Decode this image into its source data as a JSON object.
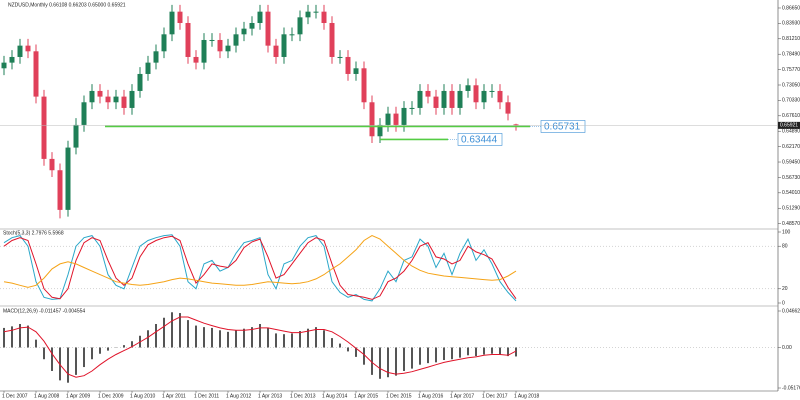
{
  "chart_data": [
    {
      "type": "candlestick",
      "title": "NZDUSD,Monthly  0.66108 0.66203 0.65000 0.65921",
      "categories": [
        "1 Dec 2007",
        null,
        null,
        null,
        "1 Aug 2008",
        null,
        null,
        null,
        "1 Apr 2009",
        null,
        null,
        null,
        "1 Dec 2009",
        null,
        null,
        null,
        "1 Aug 2010",
        null,
        null,
        null,
        "1 Apr 2011",
        null,
        null,
        null,
        "1 Dec 2011",
        null,
        null,
        null,
        "1 Aug 2012",
        null,
        null,
        null,
        "1 Apr 2013",
        null,
        null,
        null,
        "1 Dec 2013",
        null,
        null,
        null,
        "1 Aug 2014",
        null,
        null,
        null,
        "1 Apr 2015",
        null,
        null,
        null,
        "1 Dec 2015",
        null,
        null,
        null,
        "1 Aug 2016",
        null,
        null,
        null,
        "1 Apr 2017",
        null,
        null,
        null,
        "1 Dec 2017",
        null,
        null,
        null,
        "1 Aug 2018"
      ],
      "open": [
        0.76,
        0.77,
        0.78,
        0.8,
        0.79,
        0.71,
        0.6,
        0.58,
        0.51,
        0.62,
        0.66,
        0.7,
        0.72,
        0.71,
        0.7,
        0.71,
        0.69,
        0.72,
        0.75,
        0.77,
        0.79,
        0.82,
        0.86,
        0.84,
        0.78,
        0.77,
        0.81,
        0.81,
        0.79,
        0.8,
        0.82,
        0.83,
        0.84,
        0.86,
        0.8,
        0.78,
        0.82,
        0.82,
        0.85,
        0.86,
        0.86,
        0.84,
        0.78,
        0.78,
        0.75,
        0.76,
        0.7,
        0.64,
        0.66,
        0.68,
        0.66,
        0.69,
        0.69,
        0.72,
        0.71,
        0.69,
        0.72,
        0.69,
        0.72,
        0.73,
        0.7,
        0.72,
        0.72,
        0.7,
        0.661
      ],
      "high": [
        0.782,
        0.792,
        0.812,
        0.812,
        0.802,
        0.722,
        0.612,
        0.592,
        0.632,
        0.672,
        0.712,
        0.732,
        0.732,
        0.722,
        0.722,
        0.722,
        0.732,
        0.762,
        0.782,
        0.802,
        0.832,
        0.872,
        0.872,
        0.852,
        0.792,
        0.822,
        0.822,
        0.822,
        0.812,
        0.832,
        0.842,
        0.852,
        0.872,
        0.872,
        0.812,
        0.832,
        0.832,
        0.862,
        0.872,
        0.872,
        0.872,
        0.852,
        0.792,
        0.792,
        0.772,
        0.772,
        0.712,
        0.672,
        0.692,
        0.692,
        0.702,
        0.702,
        0.732,
        0.732,
        0.722,
        0.732,
        0.732,
        0.732,
        0.742,
        0.742,
        0.732,
        0.732,
        0.732,
        0.712,
        0.662
      ],
      "low": [
        0.748,
        0.758,
        0.768,
        0.778,
        0.698,
        0.588,
        0.568,
        0.495,
        0.498,
        0.608,
        0.648,
        0.688,
        0.698,
        0.688,
        0.688,
        0.678,
        0.678,
        0.708,
        0.738,
        0.758,
        0.778,
        0.808,
        0.828,
        0.768,
        0.758,
        0.758,
        0.798,
        0.778,
        0.778,
        0.788,
        0.808,
        0.818,
        0.828,
        0.788,
        0.768,
        0.768,
        0.808,
        0.808,
        0.838,
        0.848,
        0.828,
        0.768,
        0.768,
        0.738,
        0.738,
        0.688,
        0.628,
        0.628,
        0.648,
        0.648,
        0.648,
        0.678,
        0.678,
        0.698,
        0.678,
        0.678,
        0.678,
        0.678,
        0.708,
        0.688,
        0.688,
        0.708,
        0.688,
        0.668,
        0.65
      ],
      "close": [
        0.77,
        0.78,
        0.8,
        0.79,
        0.71,
        0.6,
        0.58,
        0.51,
        0.62,
        0.66,
        0.7,
        0.72,
        0.71,
        0.7,
        0.71,
        0.69,
        0.72,
        0.75,
        0.77,
        0.79,
        0.82,
        0.86,
        0.84,
        0.78,
        0.77,
        0.81,
        0.81,
        0.79,
        0.8,
        0.82,
        0.83,
        0.84,
        0.86,
        0.8,
        0.78,
        0.82,
        0.82,
        0.85,
        0.86,
        0.86,
        0.84,
        0.78,
        0.78,
        0.75,
        0.76,
        0.7,
        0.64,
        0.66,
        0.68,
        0.66,
        0.69,
        0.69,
        0.72,
        0.71,
        0.69,
        0.72,
        0.69,
        0.72,
        0.73,
        0.7,
        0.72,
        0.72,
        0.7,
        0.68,
        0.659
      ],
      "up_color": "#1f7f57",
      "down_color": "#e0405a",
      "ylim": [
        0.478,
        0.8806
      ],
      "yticks": [
        {
          "value": 0.8665,
          "label": "0.86650"
        },
        {
          "value": 0.8393,
          "label": "0.83930"
        },
        {
          "value": 0.8121,
          "label": "0.81210"
        },
        {
          "value": 0.7849,
          "label": "0.78490"
        },
        {
          "value": 0.7577,
          "label": "0.75770"
        },
        {
          "value": 0.7305,
          "label": "0.73050"
        },
        {
          "value": 0.7033,
          "label": "0.70330"
        },
        {
          "value": 0.6761,
          "label": "0.67610"
        },
        {
          "value": 0.6489,
          "label": "0.64890"
        },
        {
          "value": 0.6217,
          "label": "0.62170"
        },
        {
          "value": 0.5945,
          "label": "0.59450"
        },
        {
          "value": 0.5673,
          "label": "0.56730"
        },
        {
          "value": 0.5401,
          "label": "0.54010"
        },
        {
          "value": 0.5129,
          "label": "0.51290"
        },
        {
          "value": 0.4857,
          "label": "0.48570"
        }
      ],
      "levels": [
        {
          "value": 0.65731,
          "label": "0.65731"
        },
        {
          "value": 0.63444,
          "label": "0.63444"
        }
      ],
      "level_color": "#55cc44",
      "level_label_color": "#3d8fd6",
      "last_price": {
        "value": 0.65921,
        "label": "0.65921"
      }
    },
    {
      "type": "line",
      "title": "Stoch(5,3,3) 2.7976 5.5968",
      "series": [
        {
          "color": "#2aa7c9",
          "values": [
            85,
            92,
            95,
            80,
            30,
            8,
            5,
            6,
            40,
            80,
            92,
            95,
            80,
            40,
            25,
            20,
            50,
            80,
            88,
            92,
            95,
            96,
            80,
            30,
            20,
            55,
            60,
            45,
            50,
            70,
            85,
            88,
            92,
            40,
            20,
            55,
            60,
            80,
            92,
            95,
            80,
            30,
            15,
            8,
            12,
            5,
            3,
            20,
            45,
            30,
            60,
            65,
            90,
            80,
            50,
            70,
            40,
            70,
            90,
            60,
            75,
            55,
            30,
            15,
            3
          ]
        },
        {
          "color": "#e0142a",
          "values": [
            80,
            88,
            92,
            88,
            55,
            20,
            8,
            6,
            20,
            60,
            85,
            92,
            88,
            60,
            35,
            25,
            35,
            65,
            82,
            88,
            92,
            94,
            88,
            55,
            28,
            40,
            55,
            52,
            50,
            60,
            78,
            86,
            90,
            65,
            35,
            40,
            55,
            70,
            85,
            92,
            88,
            55,
            25,
            12,
            10,
            8,
            5,
            10,
            30,
            35,
            45,
            60,
            80,
            85,
            65,
            62,
            55,
            60,
            80,
            72,
            68,
            62,
            42,
            22,
            6
          ]
        },
        {
          "color": "#f5a316",
          "values": [
            30,
            28,
            25,
            22,
            25,
            35,
            48,
            55,
            58,
            55,
            50,
            45,
            40,
            35,
            30,
            28,
            26,
            25,
            26,
            28,
            30,
            33,
            35,
            34,
            32,
            30,
            28,
            27,
            26,
            25,
            25,
            26,
            28,
            30,
            29,
            28,
            27,
            28,
            30,
            34,
            40,
            48,
            55,
            65,
            75,
            88,
            95,
            90,
            80,
            70,
            60,
            52,
            46,
            42,
            40,
            38,
            37,
            36,
            35,
            34,
            33,
            32,
            33,
            38,
            45
          ]
        }
      ],
      "ylim": [
        0,
        100
      ],
      "yticks": [
        0,
        20,
        80,
        100
      ]
    },
    {
      "type": "macd",
      "title": "MACD(12,26,9) -0.011457 -0.004554",
      "histogram": {
        "color": "#555555",
        "values": [
          0.025,
          0.027,
          0.03,
          0.028,
          0.01,
          -0.015,
          -0.03,
          -0.042,
          -0.045,
          -0.035,
          -0.025,
          -0.015,
          -0.008,
          -0.004,
          0.0,
          0.003,
          0.008,
          0.015,
          0.022,
          0.03,
          0.038,
          0.045,
          0.044,
          0.035,
          0.028,
          0.026,
          0.025,
          0.022,
          0.02,
          0.022,
          0.024,
          0.026,
          0.03,
          0.025,
          0.018,
          0.017,
          0.018,
          0.021,
          0.024,
          0.026,
          0.022,
          0.012,
          0.005,
          -0.005,
          -0.012,
          -0.022,
          -0.035,
          -0.04,
          -0.038,
          -0.036,
          -0.03,
          -0.027,
          -0.022,
          -0.02,
          -0.019,
          -0.016,
          -0.015,
          -0.013,
          -0.01,
          -0.011,
          -0.009,
          -0.008,
          -0.009,
          -0.011,
          -0.011457
        ]
      },
      "signal": {
        "color": "#e0142a",
        "values": [
          0.02,
          0.022,
          0.025,
          0.026,
          0.02,
          0.008,
          -0.008,
          -0.022,
          -0.034,
          -0.038,
          -0.036,
          -0.03,
          -0.022,
          -0.015,
          -0.009,
          -0.004,
          0.001,
          0.007,
          0.013,
          0.02,
          0.027,
          0.034,
          0.039,
          0.039,
          0.035,
          0.031,
          0.028,
          0.025,
          0.023,
          0.022,
          0.022,
          0.023,
          0.025,
          0.025,
          0.023,
          0.021,
          0.019,
          0.019,
          0.021,
          0.023,
          0.023,
          0.02,
          0.014,
          0.007,
          -0.001,
          -0.009,
          -0.019,
          -0.027,
          -0.032,
          -0.034,
          -0.033,
          -0.031,
          -0.028,
          -0.025,
          -0.022,
          -0.019,
          -0.017,
          -0.015,
          -0.013,
          -0.012,
          -0.01,
          -0.009,
          -0.009,
          -0.01,
          -0.004554
        ]
      },
      "ylim": [
        -0.051767,
        0.046625
      ],
      "yticks": [
        {
          "value": 0.046625,
          "label": "0.046625"
        },
        {
          "value": 0,
          "label": "0.00"
        },
        {
          "value": -0.051767,
          "label": "-0.051767"
        }
      ]
    }
  ]
}
